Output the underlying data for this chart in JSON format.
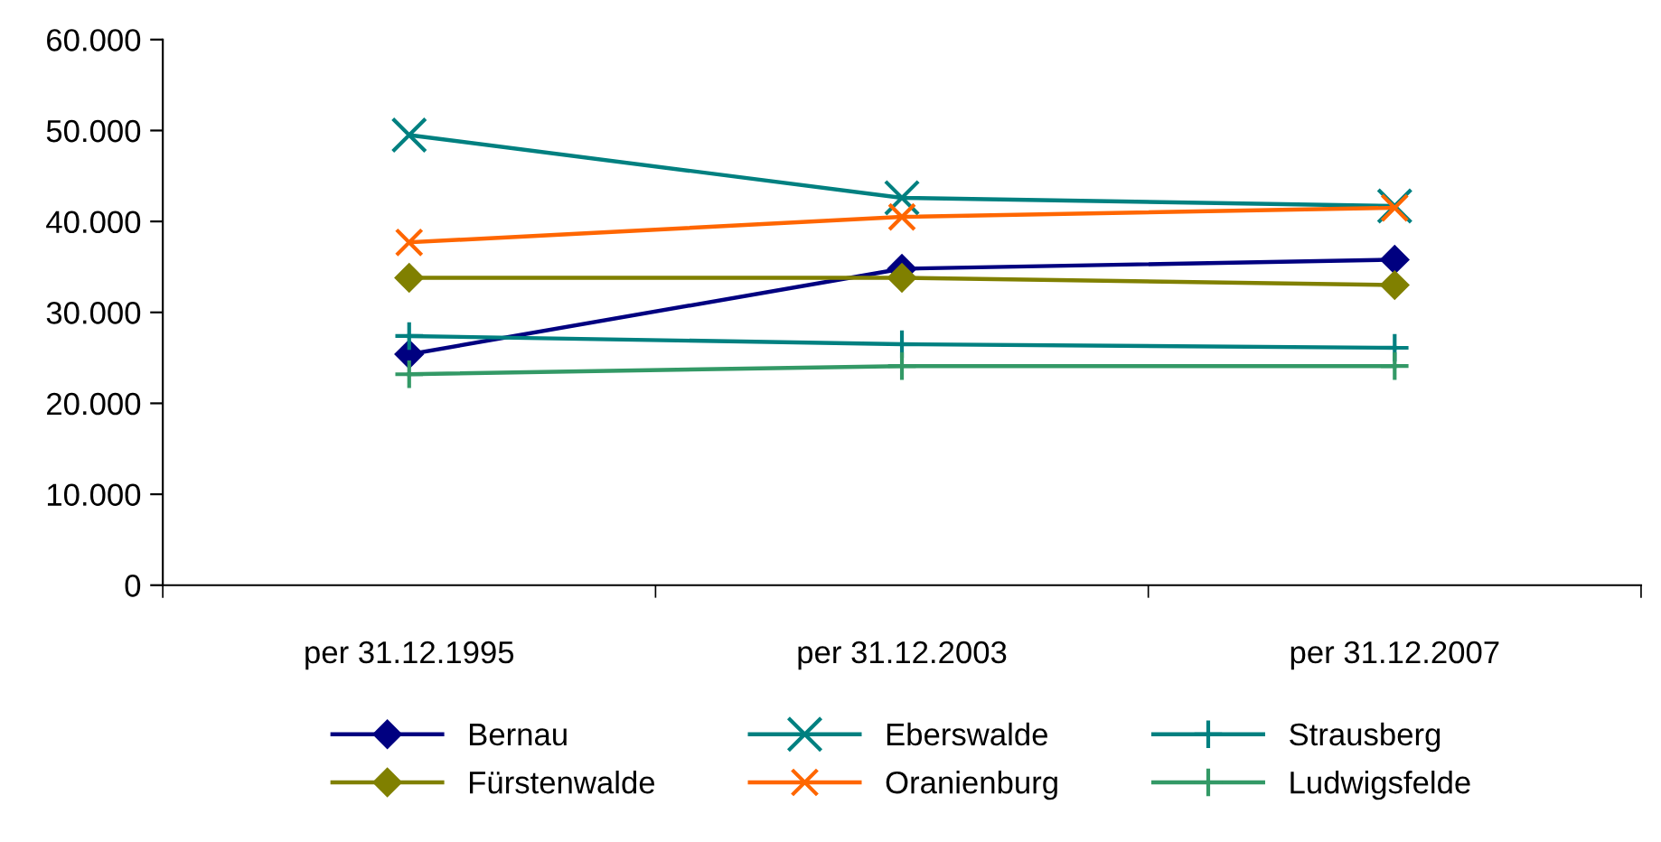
{
  "chart_data": {
    "type": "line",
    "categories": [
      "per 31.12.1995",
      "per 31.12.2003",
      "per 31.12.2007"
    ],
    "series": [
      {
        "name": "Bernau",
        "color": "#000080",
        "marker": "diamond",
        "values": [
          25400,
          34800,
          35800
        ]
      },
      {
        "name": "Eberswalde",
        "color": "#008080",
        "marker": "cross",
        "values": [
          49500,
          42600,
          41700
        ]
      },
      {
        "name": "Strausberg",
        "color": "#008080",
        "marker": "plus",
        "values": [
          27400,
          26500,
          26100
        ]
      },
      {
        "name": "Fürstenwalde",
        "color": "#808000",
        "marker": "diamond",
        "values": [
          33800,
          33800,
          33000
        ]
      },
      {
        "name": "Oranienburg",
        "color": "#ff6600",
        "marker": "cross",
        "values": [
          37700,
          40500,
          41500
        ]
      },
      {
        "name": "Ludwigsfelde",
        "color": "#339966",
        "marker": "plus",
        "values": [
          23200,
          24100,
          24100
        ]
      }
    ],
    "ylim": [
      0,
      60000
    ],
    "yticks": [
      {
        "value": 0,
        "label": "0"
      },
      {
        "value": 10000,
        "label": "10.000"
      },
      {
        "value": 20000,
        "label": "20.000"
      },
      {
        "value": 30000,
        "label": "30.000"
      },
      {
        "value": 40000,
        "label": "40.000"
      },
      {
        "value": 50000,
        "label": "50.000"
      },
      {
        "value": 60000,
        "label": "60.000"
      }
    ],
    "grid": false,
    "legend": "bottom",
    "line_style": "solid"
  }
}
